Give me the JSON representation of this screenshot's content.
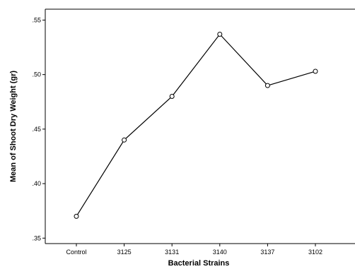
{
  "chart_data": {
    "type": "line",
    "title": "",
    "xlabel": "Bacterial Strains",
    "ylabel": "Mean of Shoot Dry Weight (gr)",
    "categories": [
      "Control",
      "3125",
      "3131",
      "3140",
      "3137",
      "3102"
    ],
    "values": [
      0.37,
      0.44,
      0.48,
      0.537,
      0.49,
      0.503
    ],
    "ylim": [
      0.345,
      0.56
    ],
    "yticks": [
      0.35,
      0.4,
      0.45,
      0.5,
      0.55
    ],
    "ytick_labels": [
      ".35",
      ".40",
      ".45",
      ".50",
      ".55"
    ],
    "marker": "open-circle",
    "grid": false,
    "legend": "none",
    "line_color": "#000000"
  }
}
